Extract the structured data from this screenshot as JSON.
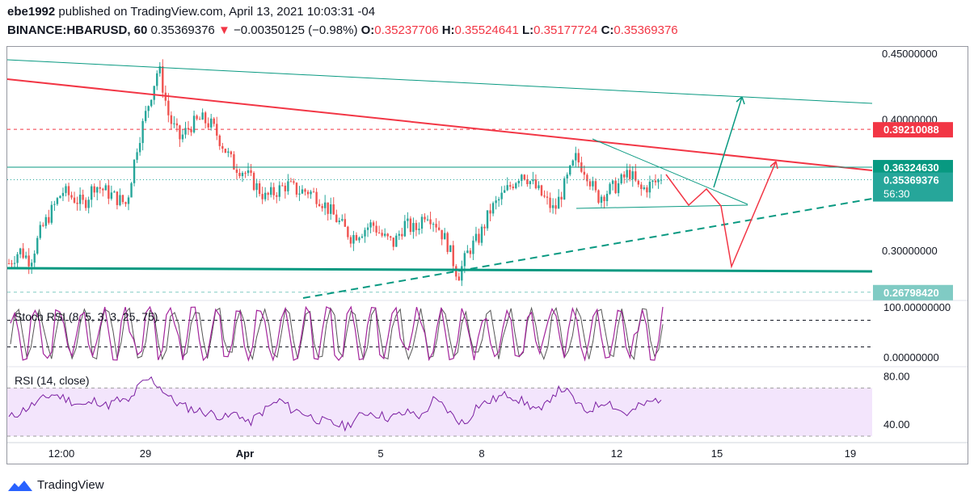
{
  "header": {
    "author": "ebe1992",
    "published_text": "published on TradingView.com, April 13, 2021 10:03:31 -04",
    "symbol": "BINANCE:HBARUSD, 60",
    "last": "0.35369376",
    "change": "−0.00350125 (−0.98%)",
    "o_label": "O:",
    "o_value": "0.35237706",
    "h_label": "H:",
    "h_value": "0.35524641",
    "l_label": "L:",
    "l_value": "0.35177724",
    "c_label": "C:",
    "c_value": "0.35369376"
  },
  "colors": {
    "up": "#26a69a",
    "down": "#ef5350",
    "teal_line": "#089981",
    "red_line": "#f23645",
    "stoch_k": "#a3249c",
    "stoch_d": "#555555",
    "rsi": "#7b1fa2",
    "rsi_band": "#f3e5fc"
  },
  "chart_data": [
    {
      "type": "candlestick",
      "title": "BINANCE:HBARUSD, 60",
      "x_tick_labels": [
        "12:00",
        "29",
        "Apr",
        "5",
        "8",
        "12",
        "15",
        "19"
      ],
      "y_tick_labels": [
        "0.45000000",
        "0.40000000",
        "0.30000000"
      ],
      "ylim": [
        0.266,
        0.455
      ],
      "price_labels": [
        {
          "text": "0.39210088",
          "value": 0.39210088,
          "color": "#f23645"
        },
        {
          "text": "0.36324630",
          "value": 0.3632463,
          "color": "#089981"
        },
        {
          "text": "0.35369376",
          "value": 0.35369376,
          "color": "#26a69a",
          "countdown": "56:30"
        },
        {
          "text": "0.26798420",
          "value": 0.2679842,
          "color": "#80cbc4"
        }
      ],
      "close_series_approx": [
        0.29,
        0.3,
        0.292,
        0.315,
        0.33,
        0.345,
        0.34,
        0.335,
        0.35,
        0.345,
        0.34,
        0.335,
        0.38,
        0.41,
        0.44,
        0.4,
        0.385,
        0.395,
        0.4,
        0.395,
        0.38,
        0.365,
        0.36,
        0.35,
        0.34,
        0.345,
        0.35,
        0.345,
        0.345,
        0.34,
        0.33,
        0.32,
        0.31,
        0.315,
        0.32,
        0.31,
        0.305,
        0.32,
        0.315,
        0.33,
        0.32,
        0.305,
        0.28,
        0.3,
        0.31,
        0.33,
        0.34,
        0.35,
        0.36,
        0.35,
        0.34,
        0.33,
        0.35,
        0.37,
        0.36,
        0.34,
        0.345,
        0.35,
        0.36,
        0.345,
        0.35,
        0.35369376
      ],
      "annotations": [
        "red descending trendline",
        "teal upper trendline",
        "teal symmetrical triangle",
        "dashed teal ascending support",
        "teal horizontal support",
        "red projected zig-zag path",
        "teal projected up arrow"
      ]
    },
    {
      "type": "line",
      "title": "Stoch RSI (8, 5, 3, 3, 25, 75)",
      "y_tick_labels": [
        "100.00000000",
        "0.00000000"
      ],
      "ylim": [
        0,
        100
      ],
      "levels": [
        25,
        75
      ],
      "series": [
        {
          "name": "K"
        },
        {
          "name": "D"
        }
      ]
    },
    {
      "type": "line",
      "title": "RSI (14, close)",
      "y_tick_labels": [
        "80.00",
        "40.00"
      ],
      "ylim": [
        30,
        85
      ],
      "band": [
        30,
        70
      ],
      "series_approx": [
        45,
        50,
        55,
        60,
        65,
        62,
        58,
        55,
        60,
        55,
        60,
        58,
        72,
        78,
        70,
        60,
        55,
        52,
        50,
        48,
        45,
        50,
        40,
        48,
        55,
        60,
        52,
        50,
        45,
        42,
        40,
        38,
        45,
        50,
        48,
        45,
        48,
        50,
        46,
        60,
        55,
        45,
        40,
        55,
        58,
        62,
        65,
        60,
        55,
        50,
        65,
        70,
        60,
        50,
        55,
        60,
        52,
        48,
        55,
        58,
        62
      ]
    }
  ],
  "footer": {
    "brand": "TradingView"
  }
}
